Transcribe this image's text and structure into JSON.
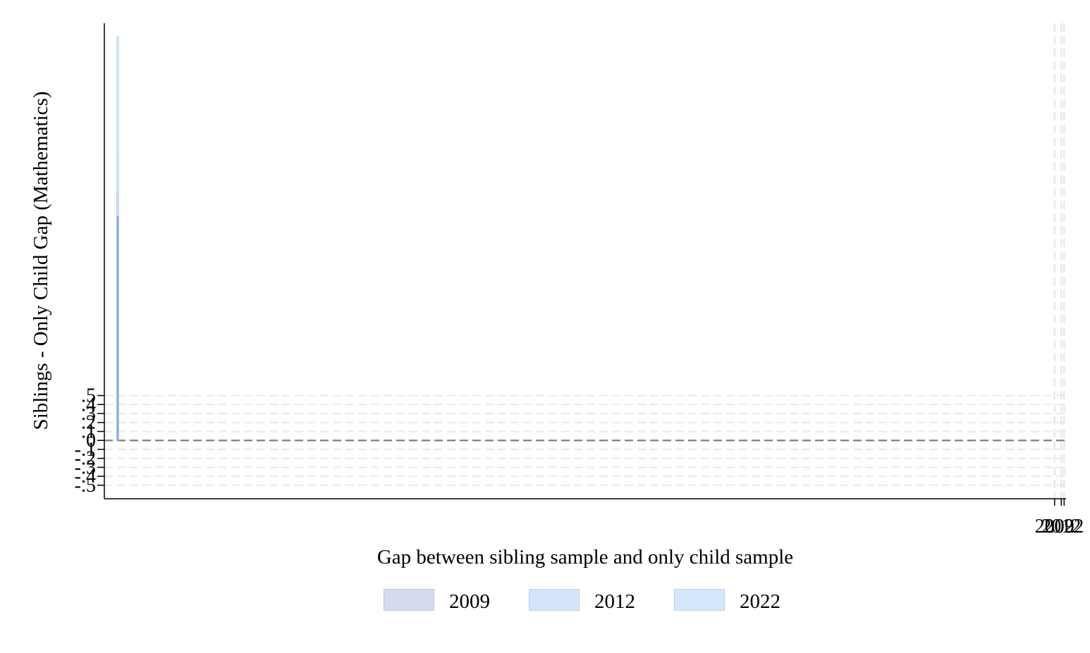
{
  "chart_data": {
    "type": "area",
    "xlabel": "Gap between sibling sample and only child sample",
    "ylabel": "Siblings - Only Child Gap (Mathematics)",
    "x_tick_labels": [
      "2009",
      "2012",
      "2022"
    ],
    "y_tick_labels": [
      "-.5",
      "-.4",
      "-.3",
      "-.2",
      "-.1",
      "0",
      ".1",
      ".2",
      ".3",
      ".4",
      ".5"
    ],
    "y_ticks": [
      -0.5,
      -0.4,
      -0.3,
      -0.2,
      -0.1,
      0,
      0.1,
      0.2,
      0.3,
      0.4,
      0.5
    ],
    "xlim": [
      -0.1,
      10
    ],
    "ylim": [
      -0.65,
      4.65
    ],
    "x_ticks": [
      9.88,
      9.95,
      9.98
    ],
    "grid": true,
    "reference_line_y": 0,
    "legend_position": "bottom",
    "series": [
      {
        "name": "2009",
        "color": "#d6dcef",
        "border": "#b9c3e3",
        "x": [
          0.04,
          0.04
        ],
        "y": [
          0,
          2.75
        ]
      },
      {
        "name": "2012",
        "color": "#d4e5fa",
        "border": "#b7d1f1",
        "x": [
          0.04,
          0.04
        ],
        "y": [
          0,
          3.2
        ]
      },
      {
        "name": "2022",
        "color": "#d5e7fb",
        "border": "#b7d2f3",
        "x": [
          0.04,
          0.04
        ],
        "y": [
          0,
          4.5
        ]
      }
    ],
    "series_line_color": "#6fa8ea"
  }
}
